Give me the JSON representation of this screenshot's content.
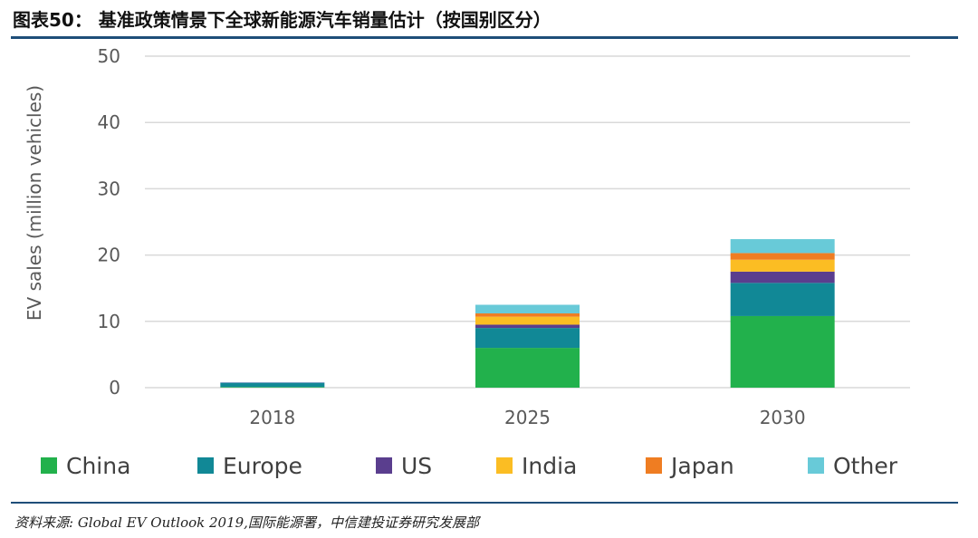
{
  "figure": {
    "title": "图表50：   基准政策情景下全球新能源汽车销量估计（按国别区分）",
    "source": "资料来源: Global EV Outlook 2019,国际能源署，中信建投证券研究发展部"
  },
  "colors": {
    "China": "#22b14c",
    "Europe": "#118896",
    "US": "#5a3e8e",
    "India": "#fbbd23",
    "Japan": "#ef7d22",
    "Other": "#68cad8",
    "grid": "#d9d9d9",
    "rule": "#1f4e79"
  },
  "chart_data": {
    "type": "bar",
    "stacked": true,
    "categories": [
      "2018",
      "2025",
      "2030"
    ],
    "ylabel": "EV sales (million vehicles)",
    "xlabel": "",
    "ylim": [
      0,
      50
    ],
    "yticks": [
      0,
      10,
      20,
      30,
      40,
      50
    ],
    "grid": true,
    "legend_position": "bottom",
    "series": [
      {
        "name": "China",
        "values": [
          0.1,
          6.0,
          10.8
        ]
      },
      {
        "name": "Europe",
        "values": [
          0.6,
          3.0,
          5.0
        ]
      },
      {
        "name": "US",
        "values": [
          0.05,
          0.5,
          1.7
        ]
      },
      {
        "name": "India",
        "values": [
          0.0,
          1.2,
          1.8
        ]
      },
      {
        "name": "Japan",
        "values": [
          0.0,
          0.5,
          1.0
        ]
      },
      {
        "name": "Other",
        "values": [
          0.05,
          1.3,
          2.1
        ]
      }
    ]
  }
}
